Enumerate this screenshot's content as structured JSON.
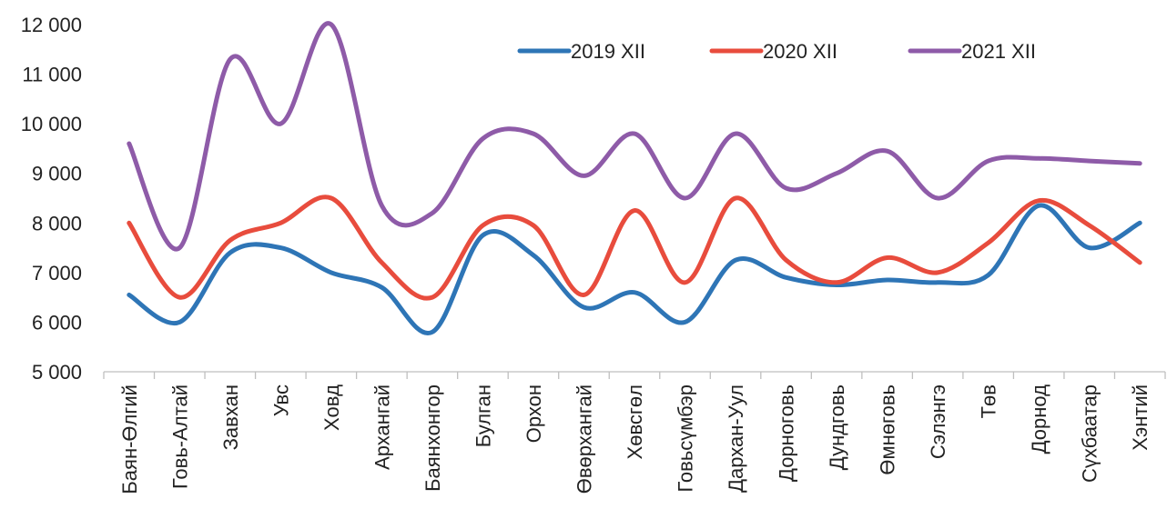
{
  "chart_data": {
    "type": "line",
    "smooth": true,
    "title": "",
    "xlabel": "",
    "ylabel": "",
    "ylim": [
      5000,
      12000
    ],
    "y_ticks": [
      5000,
      6000,
      7000,
      8000,
      9000,
      10000,
      11000,
      12000
    ],
    "y_tick_labels": [
      "5 000",
      "6 000",
      "7 000",
      "8 000",
      "9 000",
      "10 000",
      "11 000",
      "12 000"
    ],
    "grid": false,
    "legend_position": "top-right",
    "categories": [
      "Баян-Өлгий",
      "Говь-Алтай",
      "Завхан",
      "Увс",
      "Ховд",
      "Архангай",
      "Баянхонгор",
      "Булган",
      "Орхон",
      "Өвөрхангай",
      "Хөвсгөл",
      "Говьсүмбэр",
      "Дархан-Уул",
      "Дорноговь",
      "Дундговь",
      "Өмнөговь",
      "Сэлэнгэ",
      "Төв",
      "Дорнод",
      "Сүхбаатар",
      "Хэнтий"
    ],
    "series": [
      {
        "name": "2019 XII",
        "color": "#2e75b6",
        "values": [
          6550,
          6000,
          7400,
          7500,
          7000,
          6700,
          5800,
          7750,
          7350,
          6300,
          6600,
          6000,
          7250,
          6900,
          6750,
          6850,
          6800,
          6950,
          8350,
          7500,
          8000
        ]
      },
      {
        "name": "2020 XII",
        "color": "#e84c3d",
        "values": [
          8000,
          6500,
          7650,
          8000,
          8500,
          7200,
          6500,
          7950,
          7950,
          6550,
          8250,
          6800,
          8500,
          7250,
          6800,
          7300,
          7000,
          7600,
          8450,
          7950,
          7200
        ]
      },
      {
        "name": "2021 XII",
        "color": "#8e5ba8",
        "values": [
          9600,
          7500,
          11300,
          10000,
          12000,
          8350,
          8200,
          9700,
          9800,
          8950,
          9800,
          8500,
          9800,
          8700,
          9000,
          9450,
          8500,
          9250,
          9300,
          9250,
          9200
        ]
      }
    ]
  }
}
